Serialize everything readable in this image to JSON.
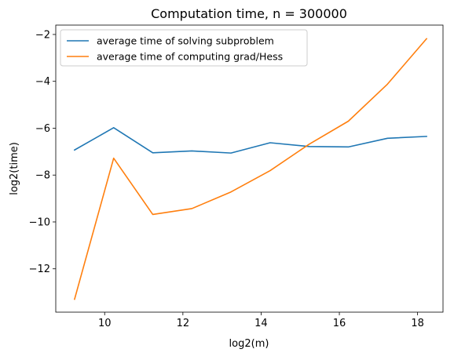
{
  "chart_data": {
    "type": "line",
    "title": "Computation time, n = 300000",
    "xlabel": "log2(m)",
    "ylabel": "log2(time)",
    "xlim": [
      8.75,
      18.65
    ],
    "ylim": [
      -13.85,
      -1.6
    ],
    "xticks": [
      10,
      12,
      14,
      16,
      18
    ],
    "yticks": [
      -12,
      -10,
      -8,
      -6,
      -4,
      -2
    ],
    "grid": false,
    "legend_position": "top-left",
    "x": [
      9.23,
      10.23,
      11.23,
      12.23,
      13.23,
      14.23,
      15.23,
      16.23,
      17.23,
      18.23
    ],
    "series": [
      {
        "name": "average time of solving subproblem",
        "color": "#1f77b4",
        "values": [
          -6.93,
          -5.98,
          -7.05,
          -6.97,
          -7.06,
          -6.62,
          -6.78,
          -6.8,
          -6.43,
          -6.35
        ]
      },
      {
        "name": "average time of computing grad/Hess",
        "color": "#ff7f0e",
        "values": [
          -13.3,
          -7.28,
          -9.68,
          -9.43,
          -8.72,
          -7.81,
          -6.68,
          -5.7,
          -4.12,
          -2.18
        ]
      }
    ]
  }
}
